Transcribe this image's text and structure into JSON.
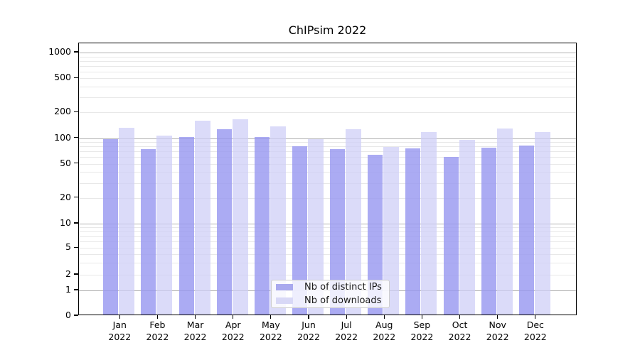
{
  "chart_data": {
    "type": "bar",
    "title": "ChIPsim 2022",
    "months": [
      "Jan",
      "Feb",
      "Mar",
      "Apr",
      "May",
      "Jun",
      "Jul",
      "Aug",
      "Sep",
      "Oct",
      "Nov",
      "Dec"
    ],
    "year": "2022",
    "categories": [
      "Jan 2022",
      "Feb 2022",
      "Mar 2022",
      "Apr 2022",
      "May 2022",
      "Jun 2022",
      "Jul 2022",
      "Aug 2022",
      "Sep 2022",
      "Oct 2022",
      "Nov 2022",
      "Dec 2022"
    ],
    "series": [
      {
        "name": "Nb of distinct IPs",
        "color": "#a9a9ee",
        "values": [
          93,
          71,
          100,
          122,
          100,
          77,
          71,
          61,
          73,
          58,
          74,
          79
        ]
      },
      {
        "name": "Nb of downloads",
        "color": "#d8d8f6",
        "values": [
          127,
          102,
          155,
          160,
          131,
          94,
          123,
          76,
          114,
          92,
          125,
          114
        ]
      }
    ],
    "yscale": "symlog",
    "y_ticks": [
      0,
      1,
      2,
      5,
      10,
      20,
      50,
      100,
      200,
      500,
      1000
    ],
    "y_major_gridlines": [
      1,
      10,
      100,
      1000
    ],
    "ylim": [
      0,
      1400
    ],
    "grid": true,
    "legend": {
      "position": "lower center",
      "labels": [
        "Nb of distinct IPs",
        "Nb of downloads"
      ]
    },
    "colors": {
      "grid_major": "#b2b2b2",
      "grid_minor": "#e8e8e8",
      "axis": "#000000",
      "background": "#ffffff"
    }
  }
}
